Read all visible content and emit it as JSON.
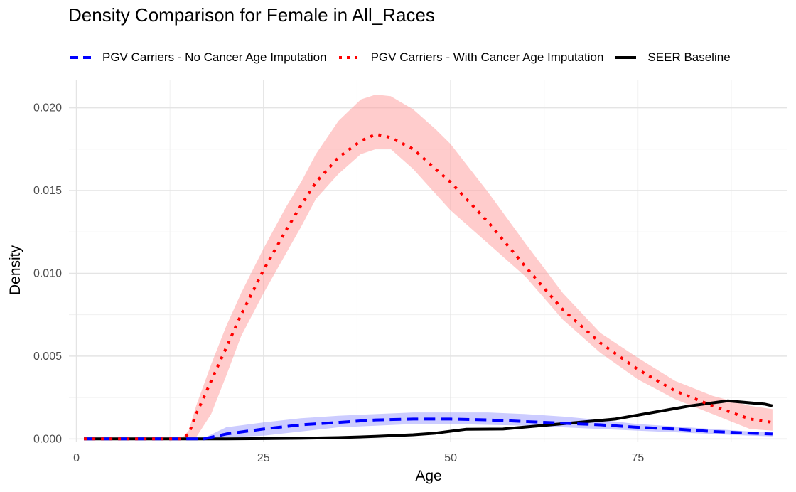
{
  "chart_data": {
    "type": "line",
    "title": "Density Comparison for Female in All_Races",
    "xlabel": "Age",
    "ylabel": "Density",
    "xlim": [
      -1,
      95
    ],
    "ylim": [
      -0.0002,
      0.0217
    ],
    "x_ticks": [
      0,
      25,
      50,
      75
    ],
    "y_ticks": [
      0.0,
      0.005,
      0.01,
      0.015,
      0.02
    ],
    "x_tick_labels": [
      "0",
      "25",
      "50",
      "75"
    ],
    "y_tick_labels": [
      "0.000",
      "0.005",
      "0.010",
      "0.015",
      "0.020"
    ],
    "grid": true,
    "legend_position": "top",
    "series": [
      {
        "name": "PGV Carriers - No Cancer Age Imputation",
        "color": "#0000FF",
        "line_style": "dashed",
        "x": [
          1,
          5,
          10,
          15,
          17,
          20,
          25,
          30,
          35,
          40,
          45,
          50,
          55,
          60,
          65,
          70,
          75,
          80,
          85,
          90,
          93
        ],
        "y": [
          0,
          0,
          0,
          0,
          0,
          0.0003,
          0.0006,
          0.00085,
          0.001,
          0.00115,
          0.0012,
          0.0012,
          0.00115,
          0.00105,
          0.00095,
          0.00085,
          0.0007,
          0.0006,
          0.00045,
          0.00035,
          0.0003
        ],
        "band_upper": [
          0,
          0,
          0,
          0,
          5e-05,
          0.0007,
          0.001,
          0.00125,
          0.0014,
          0.0015,
          0.0016,
          0.0016,
          0.0016,
          0.0015,
          0.00135,
          0.00115,
          0.0009,
          0.00075,
          0.0006,
          0.00045,
          0.0004
        ],
        "band_lower": [
          0,
          0,
          0,
          0,
          0,
          0.0001,
          0.0002,
          0.00045,
          0.0007,
          0.0008,
          0.0009,
          0.0009,
          0.00085,
          0.0008,
          0.0007,
          0.0006,
          0.0005,
          0.0004,
          0.0003,
          0.0002,
          0.00015
        ],
        "band_color": "#9999ff"
      },
      {
        "name": "PGV Carriers - With Cancer Age Imputation",
        "color": "#FF0000",
        "line_style": "dotted",
        "x": [
          1,
          5,
          10,
          14,
          15,
          16,
          18,
          20,
          22,
          25,
          28,
          30,
          32,
          35,
          38,
          40,
          42,
          45,
          48,
          50,
          55,
          60,
          65,
          70,
          75,
          80,
          85,
          90,
          93
        ],
        "y": [
          0,
          0,
          0,
          0,
          0.0003,
          0.0015,
          0.0035,
          0.0055,
          0.0075,
          0.0102,
          0.0126,
          0.0141,
          0.0155,
          0.017,
          0.018,
          0.0184,
          0.0182,
          0.0175,
          0.0163,
          0.0155,
          0.0131,
          0.0104,
          0.0078,
          0.0058,
          0.0042,
          0.0029,
          0.002,
          0.0012,
          0.001
        ],
        "band_upper": [
          0,
          0,
          0,
          0,
          0.0005,
          0.002,
          0.0045,
          0.0068,
          0.0088,
          0.0115,
          0.014,
          0.0155,
          0.0172,
          0.0192,
          0.0205,
          0.0208,
          0.0207,
          0.0199,
          0.0187,
          0.0178,
          0.0149,
          0.0118,
          0.0088,
          0.0064,
          0.0049,
          0.0035,
          0.0026,
          0.002,
          0.0018
        ],
        "band_lower": [
          0,
          0,
          0,
          0,
          0,
          0.0001,
          0.0015,
          0.0038,
          0.0062,
          0.0088,
          0.0112,
          0.0128,
          0.0145,
          0.016,
          0.0172,
          0.0175,
          0.0175,
          0.0163,
          0.0148,
          0.0138,
          0.0118,
          0.0098,
          0.0072,
          0.0052,
          0.0036,
          0.0024,
          0.0015,
          0.0006,
          0.0005
        ],
        "band_color": "#ff9999"
      },
      {
        "name": "SEER Baseline",
        "color": "#000000",
        "line_style": "solid",
        "x": [
          1,
          5,
          10,
          15,
          20,
          25,
          30,
          35,
          40,
          45,
          48,
          52,
          57,
          62,
          67,
          72,
          77,
          82,
          87,
          92,
          93
        ],
        "y": [
          0,
          0,
          0,
          0,
          0,
          2e-05,
          4e-05,
          8e-05,
          0.00015,
          0.00025,
          0.00035,
          0.00058,
          0.0006,
          0.0008,
          0.001,
          0.0012,
          0.0016,
          0.002,
          0.0023,
          0.0021,
          0.002
        ]
      }
    ]
  }
}
